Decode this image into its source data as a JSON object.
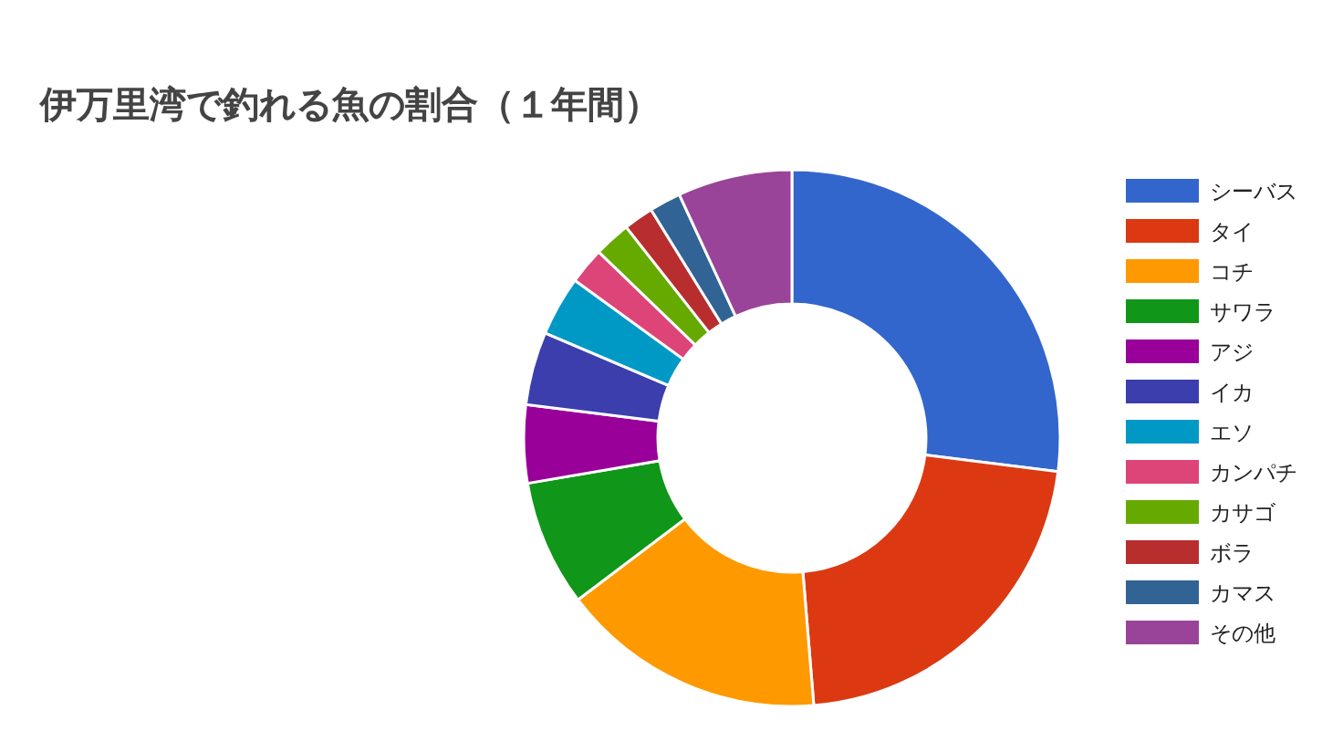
{
  "chart_data": {
    "type": "donut",
    "title": "伊万里湾で釣れる魚の割合（１年間）",
    "categories": [
      "シーバス",
      "タイ",
      "コチ",
      "サワラ",
      "アジ",
      "イカ",
      "エソ",
      "カンパチ",
      "カサゴ",
      "ボラ",
      "カマス",
      "その他"
    ],
    "values": [
      27,
      21.7,
      16,
      7.6,
      4.7,
      4.4,
      3.6,
      2.2,
      2.2,
      1.8,
      1.9,
      6.9
    ],
    "colors": [
      "#3366cc",
      "#dc3912",
      "#ff9900",
      "#109618",
      "#990099",
      "#3b3eac",
      "#0099c6",
      "#dd4477",
      "#66aa00",
      "#b82e2e",
      "#316395",
      "#994499"
    ],
    "legend": "right"
  }
}
